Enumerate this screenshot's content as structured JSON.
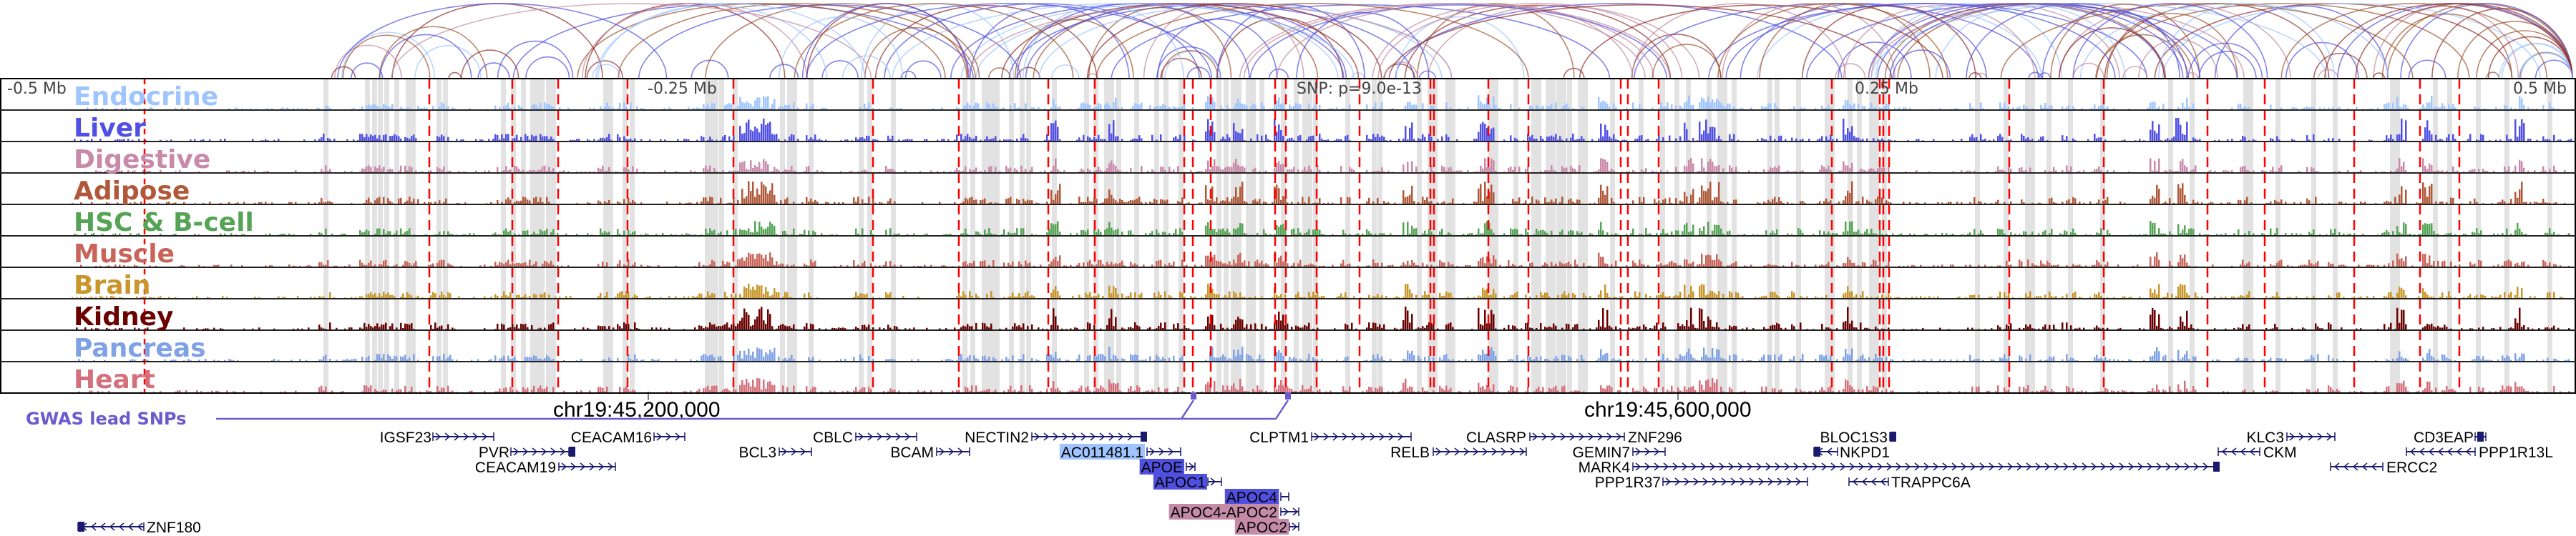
{
  "axis": {
    "labels": [
      "-0.5 Mb",
      "-0.25 Mb",
      "SNP: p=9.0e-13",
      "0.25 Mb",
      "0.5 Mb"
    ]
  },
  "tracks": [
    {
      "label": "Endocrine",
      "color": "#9ec5ff"
    },
    {
      "label": "Liver",
      "color": "#5050e6"
    },
    {
      "label": "Digestive",
      "color": "#c88aa8"
    },
    {
      "label": "Adipose",
      "color": "#b0593a"
    },
    {
      "label": "HSC & B-cell",
      "color": "#55a455"
    },
    {
      "label": "Muscle",
      "color": "#c8645a"
    },
    {
      "label": "Brain",
      "color": "#c8962a"
    },
    {
      "label": "Kidney",
      "color": "#6b0000"
    },
    {
      "label": "Pancreas",
      "color": "#7fa2e6"
    },
    {
      "label": "Heart",
      "color": "#d4707c"
    }
  ],
  "coordinates": [
    "chr19:45,200,000",
    "chr19:45,600,000"
  ],
  "gwas": {
    "label": "GWAS lead SNPs",
    "color": "#6a5acd"
  },
  "genes": [
    {
      "name": "IGSF23"
    },
    {
      "name": "PVR"
    },
    {
      "name": "CEACAM19"
    },
    {
      "name": "CEACAM16"
    },
    {
      "name": "BCL3"
    },
    {
      "name": "CBLC"
    },
    {
      "name": "BCAM"
    },
    {
      "name": "NECTIN2"
    },
    {
      "name": "AC011481.1",
      "highlight": "#a0c4ff"
    },
    {
      "name": "APOE",
      "highlight": "#5050e0"
    },
    {
      "name": "APOC1",
      "highlight": "#5050e0"
    },
    {
      "name": "APOC4",
      "highlight": "#5050e0"
    },
    {
      "name": "APOC4-APOC2",
      "highlight": "#c48aa6"
    },
    {
      "name": "APOC2",
      "highlight": "#c48aa6"
    },
    {
      "name": "CLPTM1"
    },
    {
      "name": "RELB"
    },
    {
      "name": "CLASRP"
    },
    {
      "name": "ZNF296"
    },
    {
      "name": "GEMIN7"
    },
    {
      "name": "MARK4"
    },
    {
      "name": "PPP1R37"
    },
    {
      "name": "BLOC1S3"
    },
    {
      "name": "NKPD1"
    },
    {
      "name": "TRAPPC6A"
    },
    {
      "name": "KLC3"
    },
    {
      "name": "CKM"
    },
    {
      "name": "CD3EAP"
    },
    {
      "name": "PPP1R13L"
    },
    {
      "name": "ERCC2"
    },
    {
      "name": "ZNF180"
    }
  ],
  "colors": {
    "gene": "#1a1a6e",
    "highlight_col": "#e2e2e2",
    "marker_line": "#ff0000"
  }
}
